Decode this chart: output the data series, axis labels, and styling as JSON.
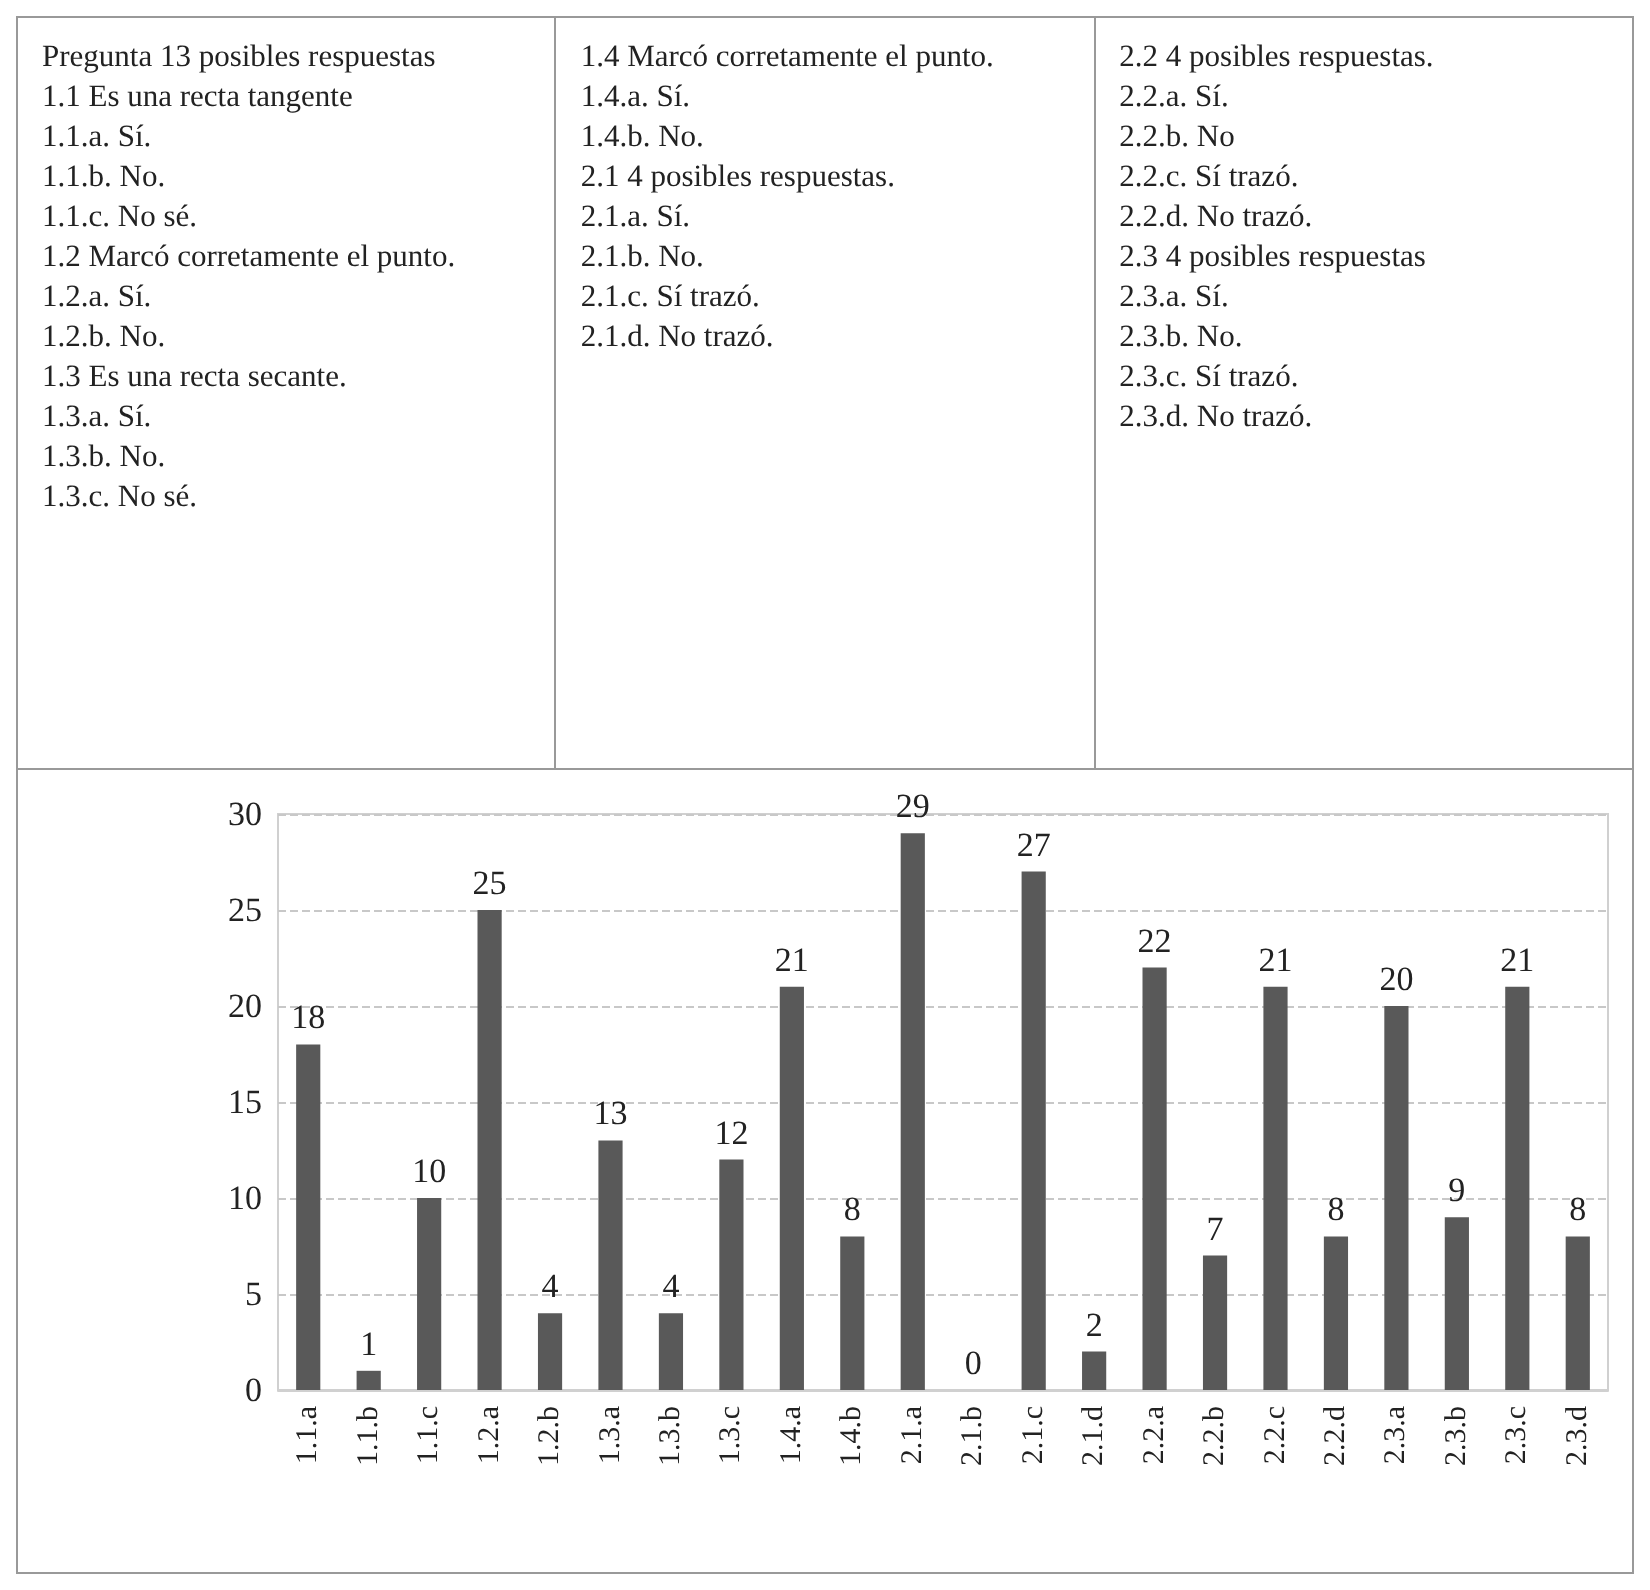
{
  "chart_data": {
    "type": "bar",
    "annotations": [
      "Pregunta 13 posibles respuestas\n1.1 Es una recta tangente\n1.1.a. Sí.\n1.1.b. No.\n1.1.c. No sé.\n1.2 Marcó corretamente el punto.\n1.2.a. Sí.\n1.2.b. No.\n1.3 Es una recta secante.\n1.3.a. Sí.\n1.3.b. No.\n1.3.c. No sé.",
      "1.4 Marcó corretamente el punto.\n1.4.a. Sí.\n1.4.b. No.\n2.1 4 posibles respuestas.\n2.1.a. Sí.\n2.1.b. No.\n2.1.c. Sí trazó.\n2.1.d. No trazó.",
      "2.2 4 posibles respuestas.\n2.2.a. Sí.\n2.2.b. No\n2.2.c. Sí trazó.\n2.2.d. No trazó.\n2.3 4 posibles respuestas\n2.3.a. Sí.\n2.3.b. No.\n2.3.c. Sí trazó.\n2.3.d. No trazó."
    ],
    "categories": [
      "1.1.a",
      "1.1.b",
      "1.1.c",
      "1.2.a",
      "1.2.b",
      "1.3.a",
      "1.3.b",
      "1.3.c",
      "1.4.a",
      "1.4.b",
      "2.1.a",
      "2.1.b",
      "2.1.c",
      "2.1.d",
      "2.2.a",
      "2.2.b",
      "2.2.c",
      "2.2.d",
      "2.3.a",
      "2.3.b",
      "2.3.c",
      "2.3.d"
    ],
    "values": [
      18,
      1,
      10,
      25,
      4,
      13,
      4,
      12,
      21,
      8,
      29,
      0,
      27,
      2,
      22,
      7,
      21,
      8,
      20,
      9,
      21,
      8
    ],
    "color": "#595959",
    "ylim": [
      0,
      30
    ],
    "yticks": [
      0,
      5,
      10,
      15,
      20,
      25,
      30
    ],
    "grid": "y",
    "data_labels": true
  }
}
